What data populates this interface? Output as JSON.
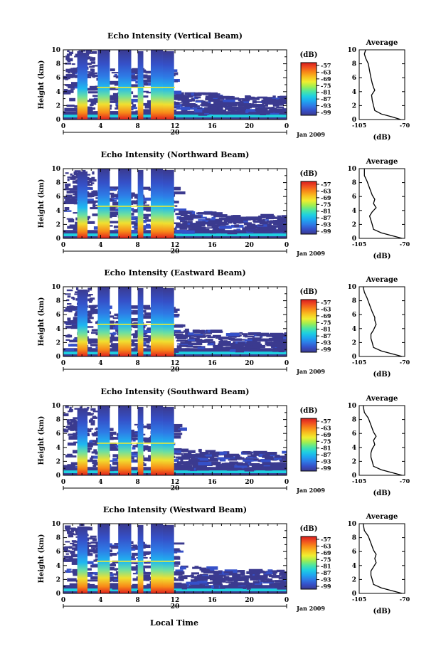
{
  "chart_data": {
    "type": "heatmap",
    "xlabel": "Local Time",
    "date_label": "Jan 2009",
    "day_label": "20",
    "x_ticks": [
      "0",
      "4",
      "8",
      "12",
      "16",
      "20",
      "0"
    ],
    "x_range": [
      0,
      24
    ],
    "ylabel": "Height (km)",
    "y_ticks": [
      "0",
      "2",
      "4",
      "6",
      "8",
      "10"
    ],
    "y_range": [
      0,
      10
    ],
    "colorbar": {
      "unit": "(dB)",
      "ticks": [
        "-57",
        "-63",
        "-69",
        "-75",
        "-81",
        "-87",
        "-93",
        "-99"
      ],
      "colors": [
        "#3b3a8f",
        "#3550c8",
        "#2e7be6",
        "#1ea8f0",
        "#1fd0e0",
        "#4ee6a0",
        "#a0ee50",
        "#f0ee30",
        "#f8c020",
        "#f88a18",
        "#f05020",
        "#d81e1e"
      ]
    },
    "profile": {
      "title": "Average",
      "xlabel": "(dB)",
      "x_ticks": [
        "-105",
        "-70"
      ],
      "x_range": [
        -105,
        -70
      ],
      "y_ticks": [
        "0",
        "2",
        "4",
        "6",
        "8",
        "10"
      ],
      "y_range": [
        0,
        10
      ]
    },
    "cloud_columns": [
      {
        "x0": 1.5,
        "x1": 2.6,
        "top": 9.6
      },
      {
        "x0": 3.7,
        "x1": 5.0,
        "top": 10
      },
      {
        "x0": 5.9,
        "x1": 7.3,
        "top": 10
      },
      {
        "x0": 8.0,
        "x1": 8.6,
        "top": 9.8
      },
      {
        "x0": 9.4,
        "x1": 10.7,
        "top": 10
      },
      {
        "x0": 10.7,
        "x1": 11.9,
        "top": 9.8
      }
    ],
    "panels": [
      {
        "title": "Echo Intensity (Vertical Beam)",
        "profile": [
          [
            -73,
            0
          ],
          [
            -80,
            0.4
          ],
          [
            -88,
            0.8
          ],
          [
            -93,
            1.3
          ],
          [
            -94,
            2
          ],
          [
            -95,
            2.8
          ],
          [
            -95.5,
            3.5
          ],
          [
            -93,
            4.2
          ],
          [
            -94,
            4.6
          ],
          [
            -95,
            5.2
          ],
          [
            -96,
            6
          ],
          [
            -97,
            7
          ],
          [
            -98,
            8
          ],
          [
            -100,
            8.8
          ],
          [
            -101,
            9.4
          ],
          [
            -100,
            10
          ]
        ]
      },
      {
        "title": "Echo Intensity (Northward Beam)",
        "profile": [
          [
            -72,
            0
          ],
          [
            -80,
            0.4
          ],
          [
            -88,
            0.8
          ],
          [
            -94,
            1.3
          ],
          [
            -95,
            2
          ],
          [
            -96,
            2.6
          ],
          [
            -97,
            3.2
          ],
          [
            -95,
            3.8
          ],
          [
            -92,
            4.4
          ],
          [
            -94,
            5
          ],
          [
            -93,
            5.6
          ],
          [
            -95,
            6.2
          ],
          [
            -97,
            7.2
          ],
          [
            -99,
            8.2
          ],
          [
            -101,
            9
          ],
          [
            -101,
            10
          ]
        ]
      },
      {
        "title": "Echo Intensity (Eastward Beam)",
        "profile": [
          [
            -72,
            0
          ],
          [
            -80,
            0.4
          ],
          [
            -88,
            0.8
          ],
          [
            -94,
            1.3
          ],
          [
            -95,
            2
          ],
          [
            -96,
            2.6
          ],
          [
            -96,
            3.2
          ],
          [
            -94,
            3.8
          ],
          [
            -92,
            4.6
          ],
          [
            -93,
            5.2
          ],
          [
            -93,
            5.6
          ],
          [
            -95,
            6.4
          ],
          [
            -97,
            7.4
          ],
          [
            -99,
            8.4
          ],
          [
            -101,
            9.2
          ],
          [
            -102,
            10
          ]
        ]
      },
      {
        "title": "Echo Intensity (Southward Beam)",
        "profile": [
          [
            -72,
            0
          ],
          [
            -80,
            0.4
          ],
          [
            -88,
            0.8
          ],
          [
            -94,
            1.3
          ],
          [
            -95,
            2
          ],
          [
            -96,
            2.6
          ],
          [
            -96,
            3.2
          ],
          [
            -95,
            3.8
          ],
          [
            -93,
            4.4
          ],
          [
            -94,
            5
          ],
          [
            -92,
            5.6
          ],
          [
            -94,
            6.2
          ],
          [
            -96,
            7.2
          ],
          [
            -98,
            8.2
          ],
          [
            -101,
            9
          ],
          [
            -102,
            10
          ]
        ]
      },
      {
        "title": "Echo Intensity (Westward Beam)",
        "profile": [
          [
            -72,
            0
          ],
          [
            -80,
            0.4
          ],
          [
            -88,
            0.8
          ],
          [
            -94,
            1.3
          ],
          [
            -95,
            2
          ],
          [
            -96,
            2.6
          ],
          [
            -96,
            3.2
          ],
          [
            -94,
            3.8
          ],
          [
            -92,
            4.4
          ],
          [
            -93,
            5
          ],
          [
            -92,
            5.6
          ],
          [
            -94,
            6.2
          ],
          [
            -96,
            7.2
          ],
          [
            -98,
            8.2
          ],
          [
            -101,
            9
          ],
          [
            -102,
            10
          ]
        ]
      }
    ]
  }
}
